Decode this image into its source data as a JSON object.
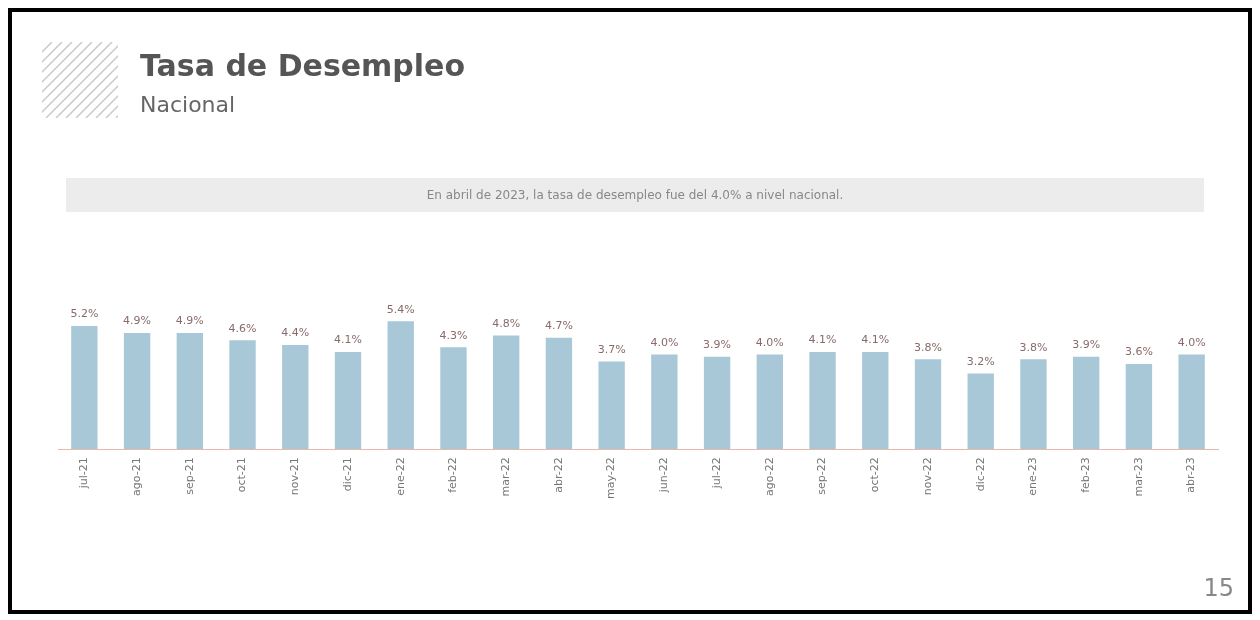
{
  "chart_data": {
    "type": "bar",
    "title": "Tasa de Desempleo",
    "subtitle": "Nacional",
    "annotations": [
      "En abril de 2023, la tasa de desempleo fue del 4.0% a nivel nacional.",
      "15"
    ],
    "categories": [
      "jul-21",
      "ago-21",
      "sep-21",
      "oct-21",
      "nov-21",
      "dic-21",
      "ene-22",
      "feb-22",
      "mar-22",
      "abr-22",
      "may-22",
      "jun-22",
      "jul-22",
      "ago-22",
      "sep-22",
      "oct-22",
      "nov-22",
      "dic-22",
      "ene-23",
      "feb-23",
      "mar-23",
      "abr-23"
    ],
    "values": [
      5.2,
      4.9,
      4.9,
      4.6,
      4.4,
      4.1,
      5.4,
      4.3,
      4.8,
      4.7,
      3.7,
      4.0,
      3.9,
      4.0,
      4.1,
      4.1,
      3.8,
      3.2,
      3.8,
      3.9,
      3.6,
      4.0
    ],
    "value_labels": [
      "5.2%",
      "4.9%",
      "4.9%",
      "4.6%",
      "4.4%",
      "4.1%",
      "5.4%",
      "4.3%",
      "4.8%",
      "4.7%",
      "3.7%",
      "4.0%",
      "3.9%",
      "4.0%",
      "4.1%",
      "4.1%",
      "3.8%",
      "3.2%",
      "3.8%",
      "3.9%",
      "3.6%",
      "4.0%"
    ],
    "color": "#a8c8d8",
    "tick_labels": "x",
    "grid": false,
    "legend": false
  }
}
